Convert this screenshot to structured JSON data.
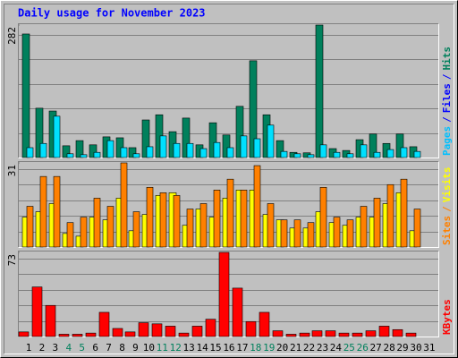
{
  "title": "Daily usage for November 2023",
  "chart_data": [
    {
      "type": "bar",
      "ylim": [
        0,
        282
      ],
      "yticks": [
        282
      ],
      "legend": [
        {
          "text": "Pages",
          "color": "#00c0ff"
        },
        {
          "text": "/",
          "color": "#0000ff"
        },
        {
          "text": "Files",
          "color": "#0000ff"
        },
        {
          "text": "/",
          "color": "#0000ff"
        },
        {
          "text": "Hits",
          "color": "#00805c"
        }
      ],
      "series": [
        {
          "name": "Hits",
          "color": "#00805c",
          "values": [
            263,
            105,
            99,
            25,
            36,
            27,
            44,
            42,
            21,
            80,
            91,
            55,
            84,
            27,
            74,
            48,
            109,
            206,
            91,
            36,
            11,
            10,
            282,
            19,
            15,
            38,
            50,
            30,
            50,
            23,
            null
          ]
        },
        {
          "name": "Pages",
          "color": "#00e0ff",
          "values": [
            21,
            30,
            88,
            8,
            6,
            11,
            36,
            21,
            8,
            23,
            46,
            30,
            30,
            19,
            32,
            21,
            46,
            40,
            69,
            13,
            8,
            6,
            27,
            11,
            8,
            27,
            11,
            17,
            21,
            13,
            null
          ]
        }
      ]
    },
    {
      "type": "bar",
      "ylim": [
        0,
        31
      ],
      "yticks": [
        31
      ],
      "legend": [
        {
          "text": "Sites",
          "color": "#ff8000"
        },
        {
          "text": "/",
          "color": "#ff8000"
        },
        {
          "text": "Visits",
          "color": "#ffff00"
        }
      ],
      "series": [
        {
          "name": "Visits",
          "color": "#ffff00",
          "values": [
            11,
            13,
            16,
            5,
            4,
            11,
            10,
            18,
            6,
            12,
            19,
            20,
            8,
            14,
            11,
            18,
            21,
            21,
            12,
            10,
            7,
            7,
            13,
            9,
            8,
            11,
            11,
            16,
            20,
            6,
            null
          ]
        },
        {
          "name": "Sites",
          "color": "#ff8000",
          "values": [
            15,
            26,
            26,
            9,
            11,
            18,
            15,
            31,
            13,
            22,
            20,
            19,
            14,
            16,
            21,
            25,
            21,
            30,
            16,
            10,
            10,
            9,
            22,
            11,
            10,
            15,
            18,
            23,
            25,
            14,
            null
          ]
        }
      ]
    },
    {
      "type": "bar",
      "ylim": [
        0,
        73
      ],
      "yticks": [
        73
      ],
      "legend": [
        {
          "text": "KBytes",
          "color": "#ff0000"
        }
      ],
      "categories": [
        "1",
        "2",
        "3",
        "4",
        "5",
        "6",
        "7",
        "8",
        "9",
        "10",
        "11",
        "12",
        "13",
        "14",
        "15",
        "16",
        "17",
        "18",
        "19",
        "20",
        "21",
        "22",
        "23",
        "24",
        "25",
        "26",
        "27",
        "28",
        "29",
        "30",
        "31"
      ],
      "highlight_categories": [
        "4",
        "5",
        "11",
        "12",
        "18",
        "19",
        "25",
        "26"
      ],
      "highlight_color": "#00805c",
      "series": [
        {
          "name": "KBytes",
          "color": "#ff0000",
          "values": [
            4,
            43,
            27,
            2,
            2,
            3,
            21,
            7,
            4,
            12,
            11,
            9,
            3,
            9,
            15,
            73,
            42,
            13,
            21,
            5,
            2,
            3,
            5,
            5,
            3,
            3,
            5,
            9,
            6,
            3,
            null
          ]
        }
      ]
    }
  ]
}
